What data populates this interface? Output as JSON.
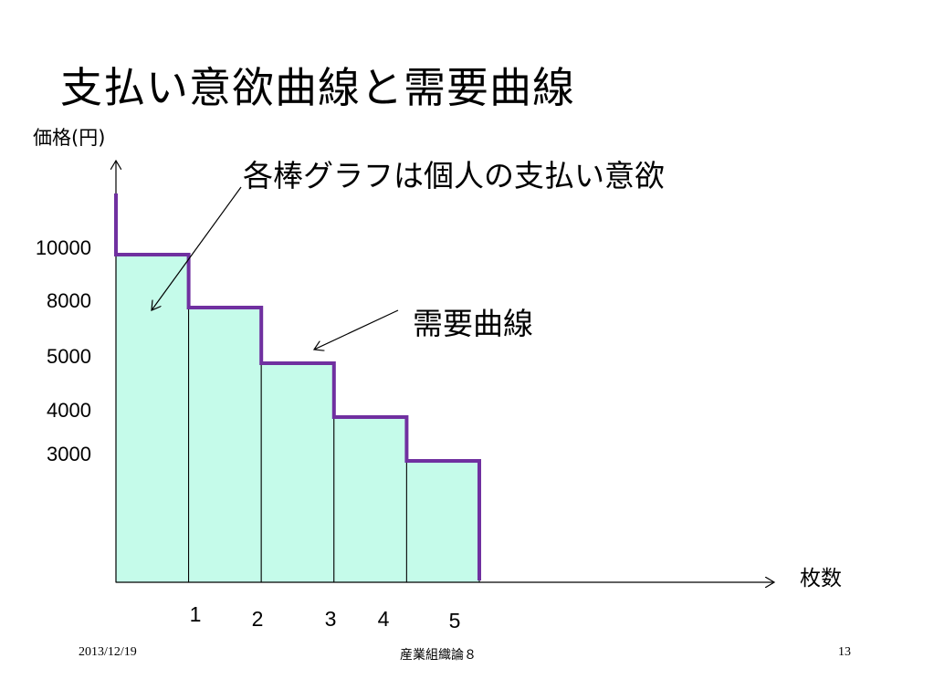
{
  "slide": {
    "title": "支払い意欲曲線と需要曲線",
    "annotation_bars": "各棒グラフは個人の支払い意欲",
    "annotation_curve": "需要曲線",
    "footer_date": "2013/12/19",
    "footer_course": "産業組織論８",
    "footer_page": "13"
  },
  "chart_data": {
    "type": "bar",
    "title": "",
    "xlabel": "枚数",
    "ylabel": "価格(円)",
    "categories": [
      "1",
      "2",
      "3",
      "4",
      "5"
    ],
    "values": [
      10000,
      8000,
      5000,
      4000,
      3000
    ],
    "y_tick_labels": [
      "10000",
      "8000",
      "5000",
      "4000",
      "3000"
    ],
    "grid": false,
    "legend": "none",
    "bar_color": "#c5fbea",
    "demand_curve_color": "#7030a0",
    "annotation_color": "#000000"
  }
}
